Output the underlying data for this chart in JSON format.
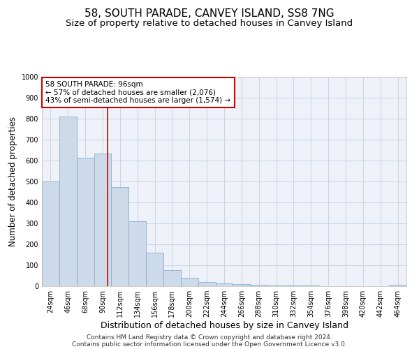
{
  "title": "58, SOUTH PARADE, CANVEY ISLAND, SS8 7NG",
  "subtitle": "Size of property relative to detached houses in Canvey Island",
  "xlabel": "Distribution of detached houses by size in Canvey Island",
  "ylabel": "Number of detached properties",
  "footer_line1": "Contains HM Land Registry data © Crown copyright and database right 2024.",
  "footer_line2": "Contains public sector information licensed under the Open Government Licence v3.0.",
  "bin_labels": [
    "24sqm",
    "46sqm",
    "68sqm",
    "90sqm",
    "112sqm",
    "134sqm",
    "156sqm",
    "178sqm",
    "200sqm",
    "222sqm",
    "244sqm",
    "266sqm",
    "288sqm",
    "310sqm",
    "332sqm",
    "354sqm",
    "376sqm",
    "398sqm",
    "420sqm",
    "442sqm",
    "464sqm"
  ],
  "bar_values": [
    500,
    810,
    615,
    635,
    475,
    310,
    160,
    78,
    40,
    20,
    15,
    10,
    6,
    5,
    3,
    2,
    1,
    1,
    0,
    0,
    8
  ],
  "bar_color": "#ccdaea",
  "bar_edgecolor": "#89aece",
  "vline_x": 3.27,
  "vline_color": "#cc0000",
  "annotation_line1": "58 SOUTH PARADE: 96sqm",
  "annotation_line2": "← 57% of detached houses are smaller (2,076)",
  "annotation_line3": "43% of semi-detached houses are larger (1,574) →",
  "annotation_box_edgecolor": "#cc0000",
  "annotation_box_facecolor": "#ffffff",
  "ylim": [
    0,
    1000
  ],
  "yticks": [
    0,
    100,
    200,
    300,
    400,
    500,
    600,
    700,
    800,
    900,
    1000
  ],
  "grid_color": "#c8d4e4",
  "background_color": "#eef2f8",
  "title_fontsize": 11,
  "subtitle_fontsize": 9.5,
  "xlabel_fontsize": 9,
  "ylabel_fontsize": 8.5,
  "tick_fontsize": 7,
  "annotation_fontsize": 7.5,
  "footer_fontsize": 6.5
}
